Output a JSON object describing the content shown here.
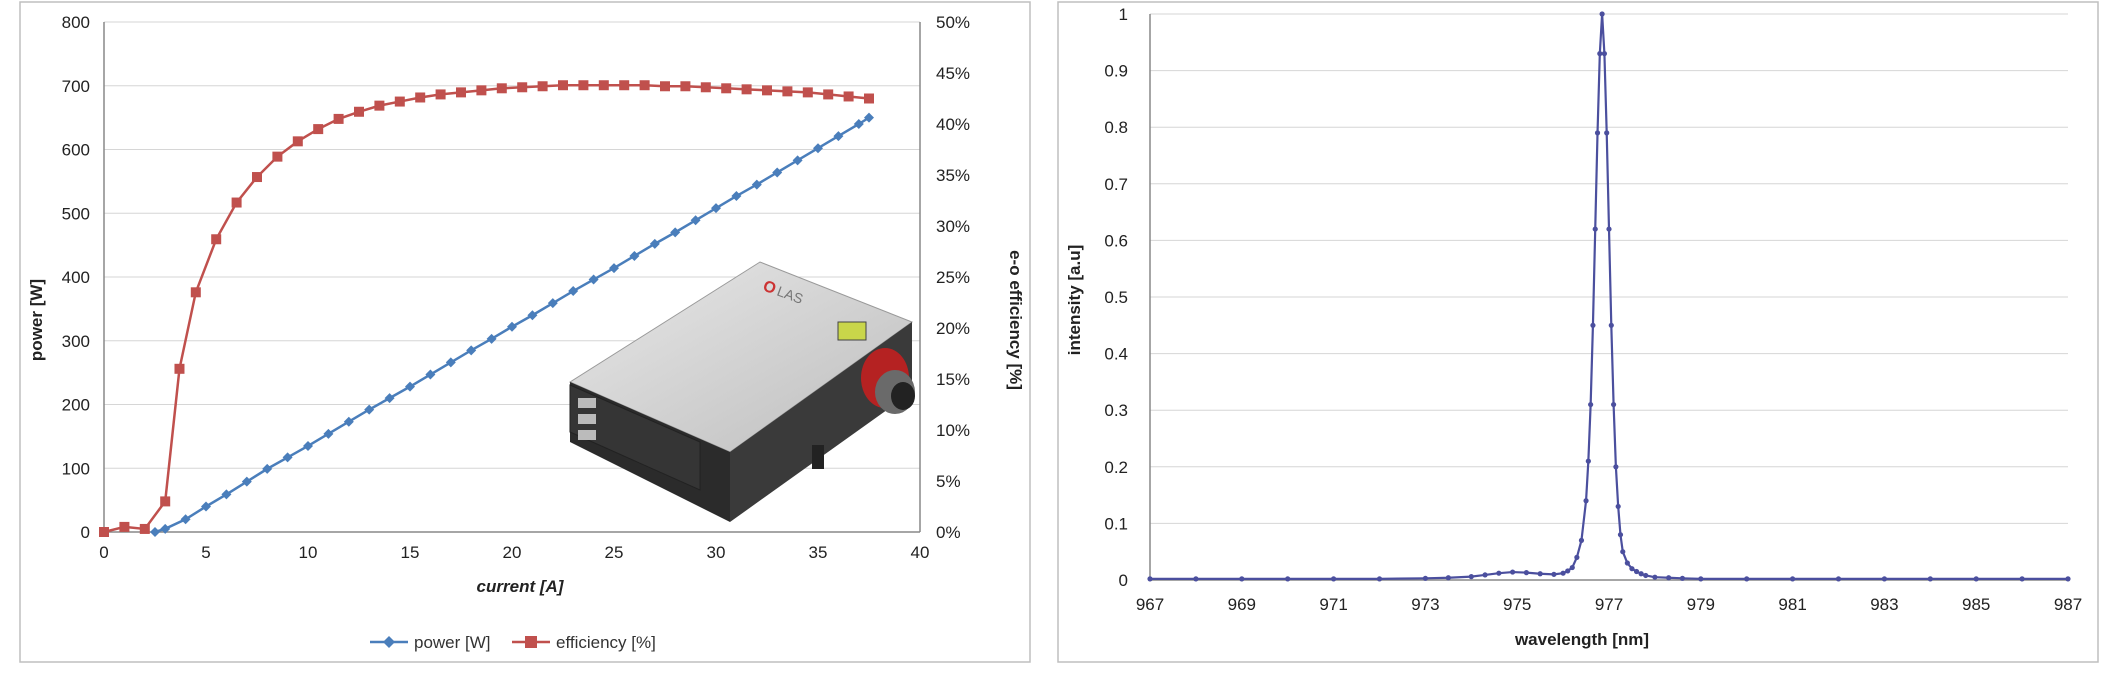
{
  "chart_data": [
    {
      "type": "line",
      "title": "",
      "xlabel": "current [A]",
      "ylabel": "power [W]",
      "y2label": "e-o efficiency [%]",
      "xlim": [
        0,
        40
      ],
      "ylim": [
        0,
        800
      ],
      "y2lim": [
        0,
        50
      ],
      "x_ticks": [
        "0",
        "5",
        "10",
        "15",
        "20",
        "25",
        "30",
        "35",
        "40"
      ],
      "y_ticks": [
        "0",
        "100",
        "200",
        "300",
        "400",
        "500",
        "600",
        "700",
        "800"
      ],
      "y2_ticks": [
        "0%",
        "5%",
        "10%",
        "15%",
        "20%",
        "25%",
        "30%",
        "35%",
        "40%",
        "45%",
        "50%"
      ],
      "grid": true,
      "legend_position": "bottom",
      "inset_image": "laser-module-photo",
      "series": [
        {
          "name": "power [W]",
          "axis": "left",
          "color": "#4a7ebb",
          "marker": "diamond",
          "x": [
            2.5,
            3,
            4,
            5,
            6,
            7,
            8,
            9,
            10,
            11,
            12,
            13,
            14,
            15,
            16,
            17,
            18,
            19,
            20,
            21,
            22,
            23,
            24,
            25,
            26,
            27,
            28,
            29,
            30,
            31,
            32,
            33,
            34,
            35,
            36,
            37,
            37.5
          ],
          "y": [
            0,
            5,
            20,
            40,
            59,
            79,
            99,
            117,
            135,
            154,
            173,
            192,
            210,
            228,
            247,
            266,
            285,
            303,
            322,
            340,
            359,
            378,
            396,
            414,
            433,
            452,
            470,
            489,
            508,
            527,
            545,
            564,
            583,
            602,
            621,
            640,
            650
          ]
        },
        {
          "name": "efficiency [%]",
          "axis": "right",
          "color": "#c0504d",
          "marker": "square",
          "x": [
            0,
            1,
            2,
            3,
            3.7,
            4.5,
            5.5,
            6.5,
            7.5,
            8.5,
            9.5,
            10.5,
            11.5,
            12.5,
            13.5,
            14.5,
            15.5,
            16.5,
            17.5,
            18.5,
            19.5,
            20.5,
            21.5,
            22.5,
            23.5,
            24.5,
            25.5,
            26.5,
            27.5,
            28.5,
            29.5,
            30.5,
            31.5,
            32.5,
            33.5,
            34.5,
            35.5,
            36.5,
            37.5
          ],
          "y": [
            0,
            0.5,
            0.3,
            3,
            16,
            23.5,
            28.7,
            32.3,
            34.8,
            36.8,
            38.3,
            39.5,
            40.5,
            41.2,
            41.8,
            42.2,
            42.6,
            42.9,
            43.1,
            43.3,
            43.5,
            43.6,
            43.7,
            43.8,
            43.8,
            43.8,
            43.8,
            43.8,
            43.7,
            43.7,
            43.6,
            43.5,
            43.4,
            43.3,
            43.2,
            43.1,
            42.9,
            42.7,
            42.5
          ]
        }
      ]
    },
    {
      "type": "line",
      "title": "",
      "xlabel": "wavelength [nm]",
      "ylabel": "intensity [a.u]",
      "xlim": [
        967,
        987
      ],
      "ylim": [
        0,
        1
      ],
      "x_ticks": [
        "967",
        "969",
        "971",
        "973",
        "975",
        "977",
        "979",
        "981",
        "983",
        "985",
        "987"
      ],
      "y_ticks": [
        "0",
        "0.1",
        "0.2",
        "0.3",
        "0.4",
        "0.5",
        "0.6",
        "0.7",
        "0.8",
        "0.9",
        "1"
      ],
      "grid": true,
      "series": [
        {
          "name": "",
          "color": "#4b4f9e",
          "marker": "dot",
          "x": [
            967,
            968,
            969,
            970,
            971,
            972,
            973,
            973.5,
            974,
            974.3,
            974.6,
            974.9,
            975.2,
            975.5,
            975.8,
            976,
            976.1,
            976.2,
            976.3,
            976.4,
            976.5,
            976.55,
            976.6,
            976.65,
            976.7,
            976.75,
            976.8,
            976.85,
            976.9,
            976.95,
            977,
            977.05,
            977.1,
            977.15,
            977.2,
            977.25,
            977.3,
            977.4,
            977.5,
            977.6,
            977.7,
            977.8,
            978,
            978.3,
            978.6,
            979,
            980,
            981,
            982,
            983,
            984,
            985,
            986,
            987
          ],
          "y": [
            0.002,
            0.002,
            0.002,
            0.002,
            0.002,
            0.002,
            0.003,
            0.004,
            0.006,
            0.009,
            0.012,
            0.014,
            0.013,
            0.011,
            0.01,
            0.012,
            0.016,
            0.022,
            0.04,
            0.07,
            0.14,
            0.21,
            0.31,
            0.45,
            0.62,
            0.79,
            0.93,
            1.0,
            0.93,
            0.79,
            0.62,
            0.45,
            0.31,
            0.2,
            0.13,
            0.08,
            0.05,
            0.03,
            0.02,
            0.015,
            0.011,
            0.008,
            0.005,
            0.004,
            0.003,
            0.002,
            0.002,
            0.002,
            0.002,
            0.002,
            0.002,
            0.002,
            0.002,
            0.002
          ]
        }
      ]
    }
  ]
}
